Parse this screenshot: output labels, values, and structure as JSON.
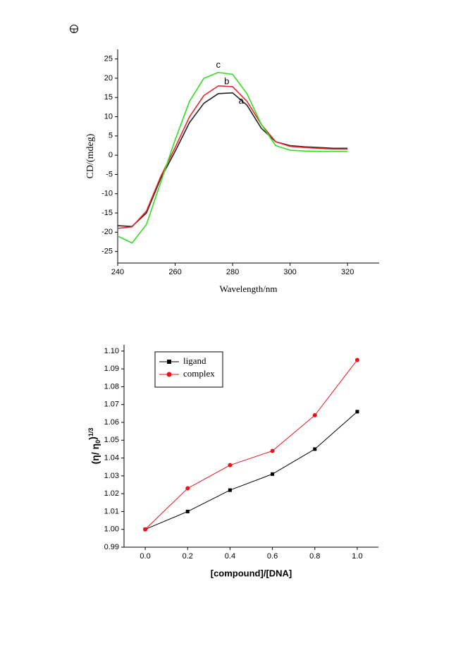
{
  "chart_data": [
    {
      "type": "line",
      "ylabel": "CD/(mdeg)",
      "xlabel": "Wavelength/nm",
      "x": [
        240,
        245,
        250,
        255,
        260,
        265,
        270,
        275,
        280,
        285,
        290,
        295,
        300,
        305,
        310,
        315,
        320
      ],
      "series": [
        {
          "name": "a",
          "color": "#222222",
          "values": [
            -18.3,
            -18.5,
            -15,
            -6,
            1,
            8.5,
            13.5,
            16,
            16.2,
            13,
            7,
            3.5,
            2.5,
            2.2,
            2,
            1.8,
            1.8
          ]
        },
        {
          "name": "b",
          "color": "#e8282a",
          "values": [
            -19,
            -18.6,
            -14.5,
            -5.5,
            2,
            10,
            15.5,
            18,
            17.8,
            14,
            8,
            3.5,
            2.3,
            2,
            1.8,
            1.6,
            1.6
          ]
        },
        {
          "name": "c",
          "color": "#33dd22",
          "values": [
            -21,
            -22.8,
            -18,
            -7,
            4,
            14,
            20,
            21.5,
            21,
            16,
            8,
            2.5,
            1.3,
            1.1,
            1,
            1,
            1
          ]
        }
      ],
      "xlim": [
        240,
        331
      ],
      "xticks": [
        240,
        260,
        280,
        300,
        320
      ],
      "ylim": [
        -28,
        27.5
      ],
      "yticks": [
        -25,
        -20,
        -15,
        -10,
        -5,
        0,
        5,
        10,
        15,
        20,
        25
      ]
    },
    {
      "type": "line",
      "ylabel_parts": [
        "(η/ η",
        "0",
        ")",
        "1/3"
      ],
      "xlabel": "[compound]/[DNA]",
      "x": [
        0,
        0.2,
        0.4,
        0.6,
        0.8,
        1
      ],
      "series": [
        {
          "name": "ligand",
          "color": "#000000",
          "marker": "square",
          "values": [
            1.0,
            1.01,
            1.022,
            1.031,
            1.045,
            1.066
          ]
        },
        {
          "name": "complex",
          "color": "#e8141a",
          "marker": "circle",
          "values": [
            1.0,
            1.023,
            1.036,
            1.044,
            1.064,
            1.095
          ]
        }
      ],
      "xlim": [
        -0.1,
        1.1
      ],
      "xticks": [
        {
          "value": 0,
          "label": "0.0"
        },
        0.2,
        0.4,
        0.6,
        0.8,
        {
          "value": 1,
          "label": "1.0"
        }
      ],
      "ylim": [
        0.99,
        1.1035
      ],
      "yticks": [
        0.99,
        {
          "value": 1,
          "label": "1.00"
        },
        1.01,
        1.02,
        1.03,
        1.04,
        1.05,
        1.06,
        1.07,
        1.08,
        1.09,
        {
          "value": 1.1,
          "label": "1.10"
        }
      ],
      "legend": "top-left"
    }
  ]
}
